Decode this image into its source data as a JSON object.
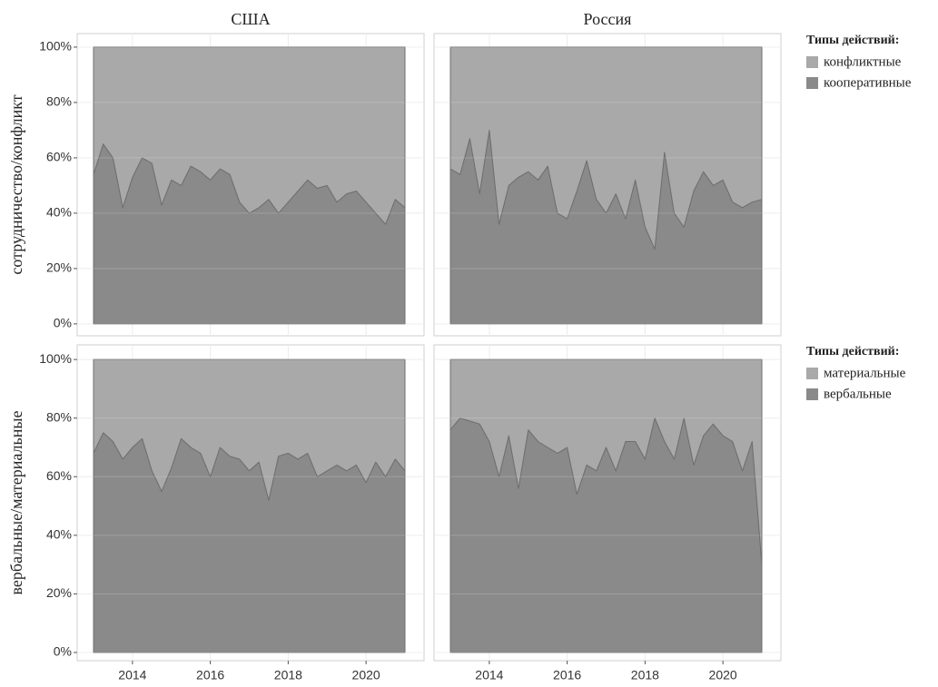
{
  "chart_data": [
    {
      "type": "area",
      "title": "США",
      "ylabel": "сотрудничество/конфликт",
      "x": [
        2013,
        2013.25,
        2013.5,
        2013.75,
        2014,
        2014.25,
        2014.5,
        2014.75,
        2015,
        2015.25,
        2015.5,
        2015.75,
        2016,
        2016.25,
        2016.5,
        2016.75,
        2017,
        2017.25,
        2017.5,
        2017.75,
        2018,
        2018.25,
        2018.5,
        2018.75,
        2019,
        2019.25,
        2019.5,
        2019.75,
        2020,
        2020.25,
        2020.5,
        2020.75,
        2021
      ],
      "series": [
        {
          "color": "#a9a9a9",
          "values": [
            46,
            35,
            40,
            58,
            47,
            40,
            42,
            57,
            48,
            50,
            43,
            45,
            48,
            44,
            46,
            56,
            60,
            58,
            55,
            60,
            56,
            52,
            48,
            51,
            50,
            56,
            53,
            52,
            56,
            60,
            64,
            55,
            58
          ]
        },
        {
          "color": "#8a8a8a",
          "values": [
            54,
            65,
            60,
            42,
            53,
            60,
            58,
            43,
            52,
            50,
            57,
            55,
            52,
            56,
            54,
            44,
            40,
            42,
            45,
            40,
            44,
            48,
            52,
            49,
            50,
            44,
            47,
            48,
            44,
            40,
            36,
            45,
            42
          ]
        }
      ],
      "xlim": [
        2012.58,
        2021.49
      ],
      "xticks": [
        2014,
        2016,
        2018,
        2020
      ],
      "ylim": [
        -4.3,
        104.9
      ],
      "yticks": [
        {
          "value": 0,
          "label": "0%"
        },
        {
          "value": 20,
          "label": "20%"
        },
        {
          "value": 40,
          "label": "40%"
        },
        {
          "value": 60,
          "label": "60%"
        },
        {
          "value": 80,
          "label": "80%"
        },
        {
          "value": 100,
          "label": "100%"
        }
      ],
      "grid": true,
      "stacked": true
    },
    {
      "type": "area",
      "title": "Россия",
      "legend_title": "Типы действий:",
      "legend": "right",
      "x": [
        2013,
        2013.25,
        2013.5,
        2013.75,
        2014,
        2014.25,
        2014.5,
        2014.75,
        2015,
        2015.25,
        2015.5,
        2015.75,
        2016,
        2016.25,
        2016.5,
        2016.75,
        2017,
        2017.25,
        2017.5,
        2017.75,
        2018,
        2018.25,
        2018.5,
        2018.75,
        2019,
        2019.25,
        2019.5,
        2019.75,
        2020,
        2020.25,
        2020.5,
        2020.75,
        2021
      ],
      "series": [
        {
          "name": "конфликтные",
          "color": "#a9a9a9",
          "values": [
            44,
            46,
            33,
            53,
            30,
            64,
            50,
            47,
            45,
            48,
            43,
            60,
            62,
            52,
            41,
            55,
            60,
            53,
            62,
            48,
            65,
            73,
            38,
            60,
            65,
            52,
            45,
            50,
            48,
            56,
            58,
            56,
            55
          ]
        },
        {
          "name": "кооперативные",
          "color": "#8a8a8a",
          "values": [
            56,
            54,
            67,
            47,
            70,
            36,
            50,
            53,
            55,
            52,
            57,
            40,
            38,
            48,
            59,
            45,
            40,
            47,
            38,
            52,
            35,
            27,
            62,
            40,
            35,
            48,
            55,
            50,
            52,
            44,
            42,
            44,
            45
          ]
        }
      ],
      "xlim": [
        2012.58,
        2021.49
      ],
      "xticks": [
        2014,
        2016,
        2018,
        2020
      ],
      "ylim": [
        -4.3,
        104.9
      ],
      "yticks": [
        0,
        20,
        40,
        60,
        80,
        100
      ],
      "grid": true,
      "stacked": true
    },
    {
      "type": "area",
      "ylabel": "вербальные/материальные",
      "x": [
        2013,
        2013.25,
        2013.5,
        2013.75,
        2014,
        2014.25,
        2014.5,
        2014.75,
        2015,
        2015.25,
        2015.5,
        2015.75,
        2016,
        2016.25,
        2016.5,
        2016.75,
        2017,
        2017.25,
        2017.5,
        2017.75,
        2018,
        2018.25,
        2018.5,
        2018.75,
        2019,
        2019.25,
        2019.5,
        2019.75,
        2020,
        2020.25,
        2020.5,
        2020.75,
        2021
      ],
      "series": [
        {
          "color": "#a9a9a9",
          "values": [
            32,
            25,
            28,
            34,
            30,
            27,
            38,
            45,
            37,
            27,
            30,
            32,
            40,
            30,
            33,
            34,
            38,
            35,
            48,
            33,
            32,
            34,
            32,
            40,
            38,
            36,
            38,
            36,
            42,
            35,
            40,
            34,
            38
          ]
        },
        {
          "color": "#8a8a8a",
          "values": [
            68,
            75,
            72,
            66,
            70,
            73,
            62,
            55,
            63,
            73,
            70,
            68,
            60,
            70,
            67,
            66,
            62,
            65,
            52,
            67,
            68,
            66,
            68,
            60,
            62,
            64,
            62,
            64,
            58,
            65,
            60,
            66,
            62
          ]
        }
      ],
      "xlim": [
        2012.58,
        2021.49
      ],
      "xticks": [
        2014,
        2016,
        2018,
        2020
      ],
      "ylim": [
        -2.8,
        105
      ],
      "yticks": [
        {
          "value": 0,
          "label": "0%"
        },
        {
          "value": 20,
          "label": "20%"
        },
        {
          "value": 40,
          "label": "40%"
        },
        {
          "value": 60,
          "label": "60%"
        },
        {
          "value": 80,
          "label": "80%"
        },
        {
          "value": 100,
          "label": "100%"
        }
      ],
      "grid": true,
      "stacked": true
    },
    {
      "type": "area",
      "legend_title": "Типы действий:",
      "legend": "right",
      "x": [
        2013,
        2013.25,
        2013.5,
        2013.75,
        2014,
        2014.25,
        2014.5,
        2014.75,
        2015,
        2015.25,
        2015.5,
        2015.75,
        2016,
        2016.25,
        2016.5,
        2016.75,
        2017,
        2017.25,
        2017.5,
        2017.75,
        2018,
        2018.25,
        2018.5,
        2018.75,
        2019,
        2019.25,
        2019.5,
        2019.75,
        2020,
        2020.25,
        2020.5,
        2020.75,
        2021
      ],
      "series": [
        {
          "name": "материальные",
          "color": "#a9a9a9",
          "values": [
            24,
            20,
            21,
            22,
            28,
            40,
            26,
            44,
            24,
            28,
            30,
            32,
            30,
            46,
            36,
            38,
            30,
            38,
            28,
            28,
            34,
            20,
            28,
            34,
            20,
            36,
            26,
            22,
            26,
            28,
            38,
            28,
            70
          ]
        },
        {
          "name": "вербальные",
          "color": "#8a8a8a",
          "values": [
            76,
            80,
            79,
            78,
            72,
            60,
            74,
            56,
            76,
            72,
            70,
            68,
            70,
            54,
            64,
            62,
            70,
            62,
            72,
            72,
            66,
            80,
            72,
            66,
            80,
            64,
            74,
            78,
            74,
            72,
            62,
            72,
            30
          ]
        }
      ],
      "xlim": [
        2012.58,
        2021.49
      ],
      "xticks": [
        2014,
        2016,
        2018,
        2020
      ],
      "ylim": [
        -2.8,
        105
      ],
      "yticks": [
        0,
        20,
        40,
        60,
        80,
        100
      ],
      "grid": true,
      "stacked": true
    }
  ]
}
